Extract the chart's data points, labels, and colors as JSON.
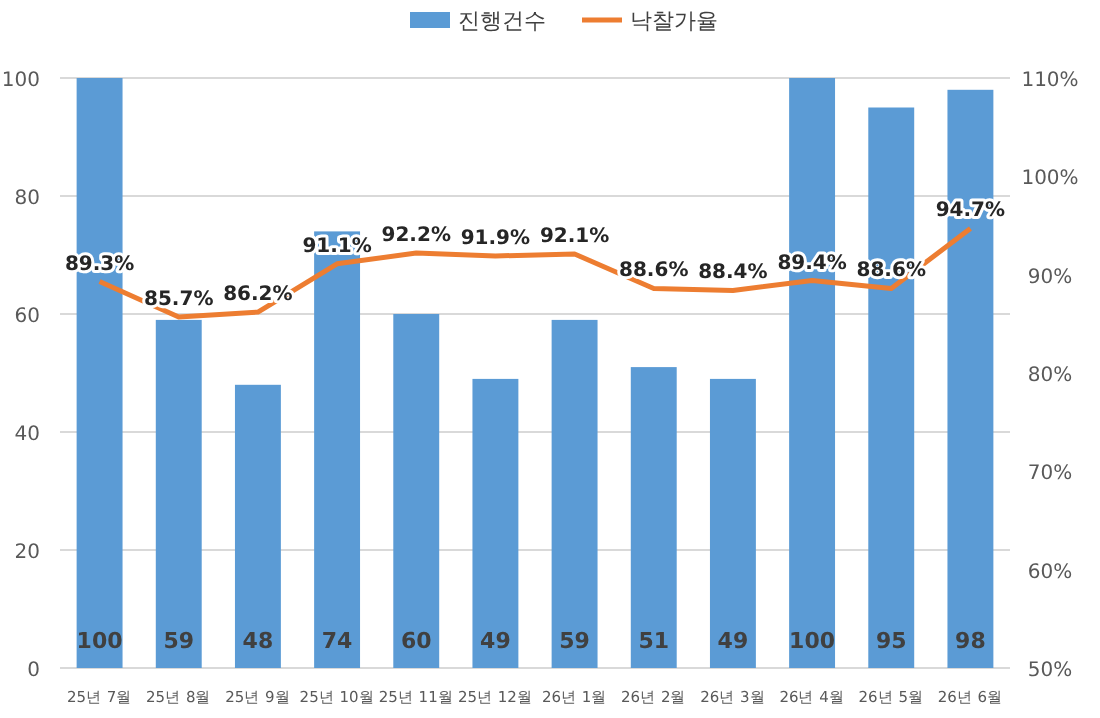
{
  "chart_data": {
    "type": "bar",
    "categories": [
      "25년 7월",
      "25년 8월",
      "25년 9월",
      "25년 10월",
      "25년 11월",
      "25년 12월",
      "26년 1월",
      "26년 2월",
      "26년 3월",
      "26년 4월",
      "26년 5월",
      "26년 6월"
    ],
    "series": [
      {
        "name": "진행건수",
        "color": "#5b9bd5",
        "values": [
          100,
          59,
          48,
          74,
          60,
          49,
          59,
          51,
          49,
          100,
          95,
          98
        ]
      },
      {
        "name": "낙찰가율",
        "type": "line",
        "axis": "y2",
        "color": "#ed7d31",
        "values": [
          89.3,
          85.7,
          86.2,
          91.1,
          92.2,
          91.9,
          92.1,
          88.6,
          88.4,
          89.4,
          88.6,
          94.7
        ],
        "value_labels": [
          "89.3%",
          "85.7%",
          "86.2%",
          "91.1%",
          "92.2%",
          "91.9%",
          "92.1%",
          "88.6%",
          "88.4%",
          "89.4%",
          "88.6%",
          "94.7%"
        ]
      }
    ],
    "data_labels": true,
    "ylim": [
      0,
      100
    ],
    "yticks": [
      0,
      20,
      40,
      60,
      80,
      100
    ],
    "y2lim": [
      50,
      110
    ],
    "y2ticks": [
      {
        "value": 50,
        "label": "50%"
      },
      {
        "value": 60,
        "label": "60%"
      },
      {
        "value": 70,
        "label": "70%"
      },
      {
        "value": 80,
        "label": "80%"
      },
      {
        "value": 90,
        "label": "90%"
      },
      {
        "value": 100,
        "label": "100%"
      },
      {
        "value": 110,
        "label": "110%"
      }
    ],
    "grid": "y",
    "legend": "top",
    "marker": "none"
  }
}
